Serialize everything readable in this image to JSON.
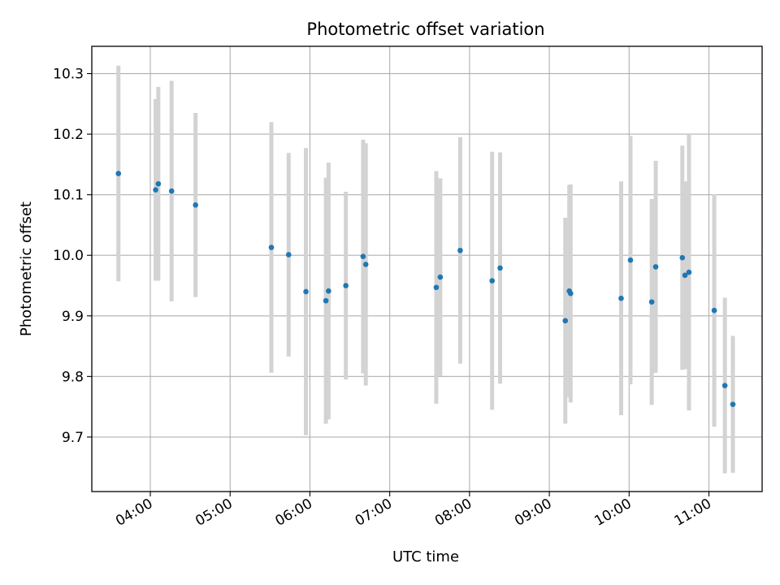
{
  "chart_data": {
    "type": "scatter",
    "title": "Photometric offset variation",
    "xlabel": "UTC time",
    "ylabel": "Photometric offset",
    "x_ticks": [
      "04:00",
      "05:00",
      "06:00",
      "07:00",
      "08:00",
      "09:00",
      "10:00",
      "11:00"
    ],
    "y_ticks": [
      "9.7",
      "9.8",
      "9.9",
      "10.0",
      "10.1",
      "10.2",
      "10.3"
    ],
    "xlim": [
      "03:16",
      "11:40"
    ],
    "ylim": [
      9.61,
      10.345
    ],
    "grid": true,
    "colors": {
      "point": "#1f77b4",
      "errorbar": "#d3d3d3",
      "grid": "#b0b0b0"
    },
    "points": [
      {
        "x": "03:36",
        "y": 10.135,
        "yerr": 0.178
      },
      {
        "x": "04:04",
        "y": 10.108,
        "yerr": 0.15
      },
      {
        "x": "04:06",
        "y": 10.118,
        "yerr": 0.16
      },
      {
        "x": "04:16",
        "y": 10.106,
        "yerr": 0.182
      },
      {
        "x": "04:34",
        "y": 10.083,
        "yerr": 0.152
      },
      {
        "x": "05:31",
        "y": 10.013,
        "yerr": 0.207
      },
      {
        "x": "05:44",
        "y": 10.001,
        "yerr": 0.168
      },
      {
        "x": "05:57",
        "y": 9.94,
        "yerr": 0.237
      },
      {
        "x": "06:12",
        "y": 9.925,
        "yerr": 0.203
      },
      {
        "x": "06:14",
        "y": 9.941,
        "yerr": 0.212
      },
      {
        "x": "06:27",
        "y": 9.95,
        "yerr": 0.155
      },
      {
        "x": "06:40",
        "y": 9.998,
        "yerr": 0.193
      },
      {
        "x": "06:42",
        "y": 9.985,
        "yerr": 0.2
      },
      {
        "x": "07:35",
        "y": 9.947,
        "yerr": 0.192
      },
      {
        "x": "07:38",
        "y": 9.964,
        "yerr": 0.163
      },
      {
        "x": "07:53",
        "y": 10.008,
        "yerr": 0.187
      },
      {
        "x": "08:17",
        "y": 9.958,
        "yerr": 0.213
      },
      {
        "x": "08:23",
        "y": 9.979,
        "yerr": 0.191
      },
      {
        "x": "09:12",
        "y": 9.892,
        "yerr": 0.17
      },
      {
        "x": "09:15",
        "y": 9.941,
        "yerr": 0.175
      },
      {
        "x": "09:16",
        "y": 9.937,
        "yerr": 0.18
      },
      {
        "x": "09:54",
        "y": 9.929,
        "yerr": 0.193
      },
      {
        "x": "10:01",
        "y": 9.992,
        "yerr": 0.205
      },
      {
        "x": "10:17",
        "y": 9.923,
        "yerr": 0.17
      },
      {
        "x": "10:20",
        "y": 9.981,
        "yerr": 0.175
      },
      {
        "x": "10:40",
        "y": 9.996,
        "yerr": 0.185
      },
      {
        "x": "10:42",
        "y": 9.967,
        "yerr": 0.155
      },
      {
        "x": "10:45",
        "y": 9.972,
        "yerr": 0.228
      },
      {
        "x": "11:04",
        "y": 9.909,
        "yerr": 0.192
      },
      {
        "x": "11:12",
        "y": 9.785,
        "yerr": 0.145
      },
      {
        "x": "11:18",
        "y": 9.754,
        "yerr": 0.113
      }
    ]
  }
}
